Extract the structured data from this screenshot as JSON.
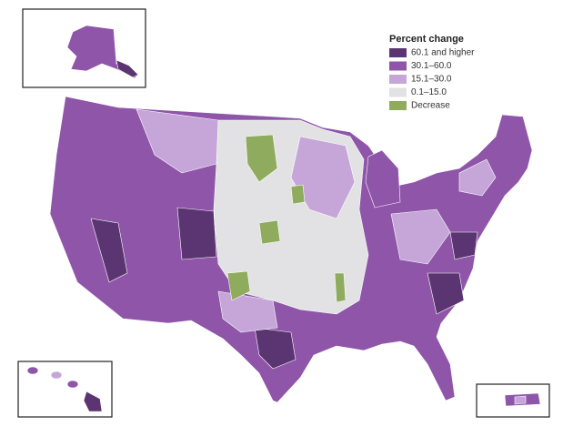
{
  "legend": {
    "title": "Percent change",
    "items": [
      {
        "label": "60.1 and higher",
        "color": "#5b3571"
      },
      {
        "label": "30.1–60.0",
        "color": "#8e55a9"
      },
      {
        "label": "15.1–30.0",
        "color": "#c6a6d8"
      },
      {
        "label": "0.1–15.0",
        "color": "#e2e2e4"
      },
      {
        "label": "Decrease",
        "color": "#8fab5e"
      }
    ]
  }
}
